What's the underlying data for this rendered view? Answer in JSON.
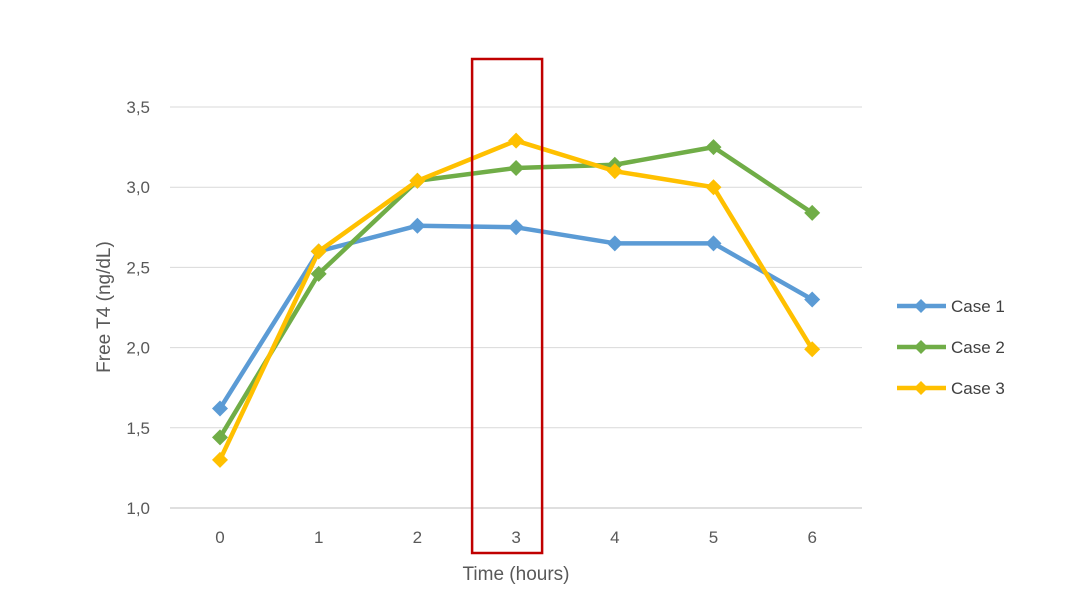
{
  "chart_data": {
    "type": "line",
    "title": "",
    "xlabel": "Time (hours)",
    "ylabel": "Free T4 (ng/dL)",
    "categories": [
      "0",
      "1",
      "2",
      "3",
      "4",
      "5",
      "6"
    ],
    "x": [
      0,
      1,
      2,
      3,
      4,
      5,
      6
    ],
    "ylim": [
      1.0,
      3.5
    ],
    "y_ticks": [
      1.0,
      1.5,
      2.0,
      2.5,
      3.0,
      3.5
    ],
    "y_tick_labels": [
      "1,0",
      "1,5",
      "2,0",
      "2,5",
      "3,0",
      "3,5"
    ],
    "grid": true,
    "legend_position": "right",
    "marker": "diamond",
    "series": [
      {
        "name": "Case 1",
        "color": "#5B9BD5",
        "values": [
          1.62,
          2.6,
          2.76,
          2.75,
          2.65,
          2.65,
          2.3
        ]
      },
      {
        "name": "Case 2",
        "color": "#70AD47",
        "values": [
          1.44,
          2.46,
          3.04,
          3.12,
          3.14,
          3.25,
          2.84
        ]
      },
      {
        "name": "Case 3",
        "color": "#FFC000",
        "values": [
          1.3,
          2.6,
          3.04,
          3.29,
          3.1,
          3.0,
          1.99
        ]
      }
    ],
    "highlight": {
      "x": 3,
      "color": "#C00000"
    }
  }
}
